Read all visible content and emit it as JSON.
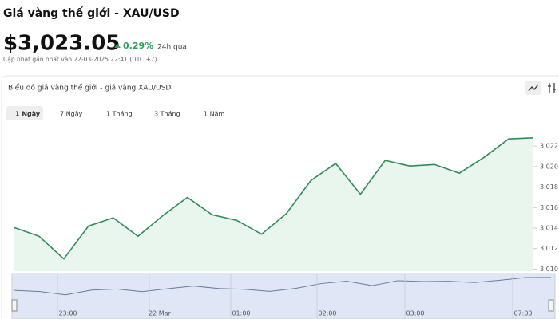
{
  "header": {
    "title": "Giá vàng thế giới - XAU/USD",
    "price": "$3,023.05",
    "change": "0.29%",
    "period": "24h qua",
    "updated": "Cập nhật gần nhất vào 22-03-2025 22:41 (UTC +7)"
  },
  "card": {
    "title": "Biểu đồ giá vàng thế giới - giá vàng XAU/USD",
    "tabs": [
      "1 Ngày",
      "7 Ngày",
      "1 Tháng",
      "3 Tháng",
      "1 Năm"
    ]
  },
  "chart_data": {
    "type": "line",
    "color": "#2e8b57",
    "fill": "#e9f6ee",
    "values": [
      3014.05,
      3013.2,
      3011.0,
      3014.2,
      3015.0,
      3013.2,
      3015.2,
      3017.0,
      3015.3,
      3014.75,
      3013.4,
      3015.4,
      3018.65,
      3020.3,
      3017.3,
      3020.6,
      3020.05,
      3020.2,
      3019.35,
      3020.9,
      3022.7,
      3022.8
    ],
    "ylim": [
      3009.8,
      3023.8
    ],
    "yticks": [
      {
        "value": 3010,
        "label": "3,010"
      },
      {
        "value": 3012,
        "label": "3,012"
      },
      {
        "value": 3014,
        "label": "3,014"
      },
      {
        "value": 3016,
        "label": "3,016"
      },
      {
        "value": 3018,
        "label": "3,018"
      },
      {
        "value": 3020,
        "label": "3,020"
      },
      {
        "value": 3022,
        "label": "3,022"
      }
    ],
    "navigator_labels": [
      "23:00",
      "22 Mar",
      "01:00",
      "02:00",
      "03:00",
      "07:00"
    ]
  }
}
